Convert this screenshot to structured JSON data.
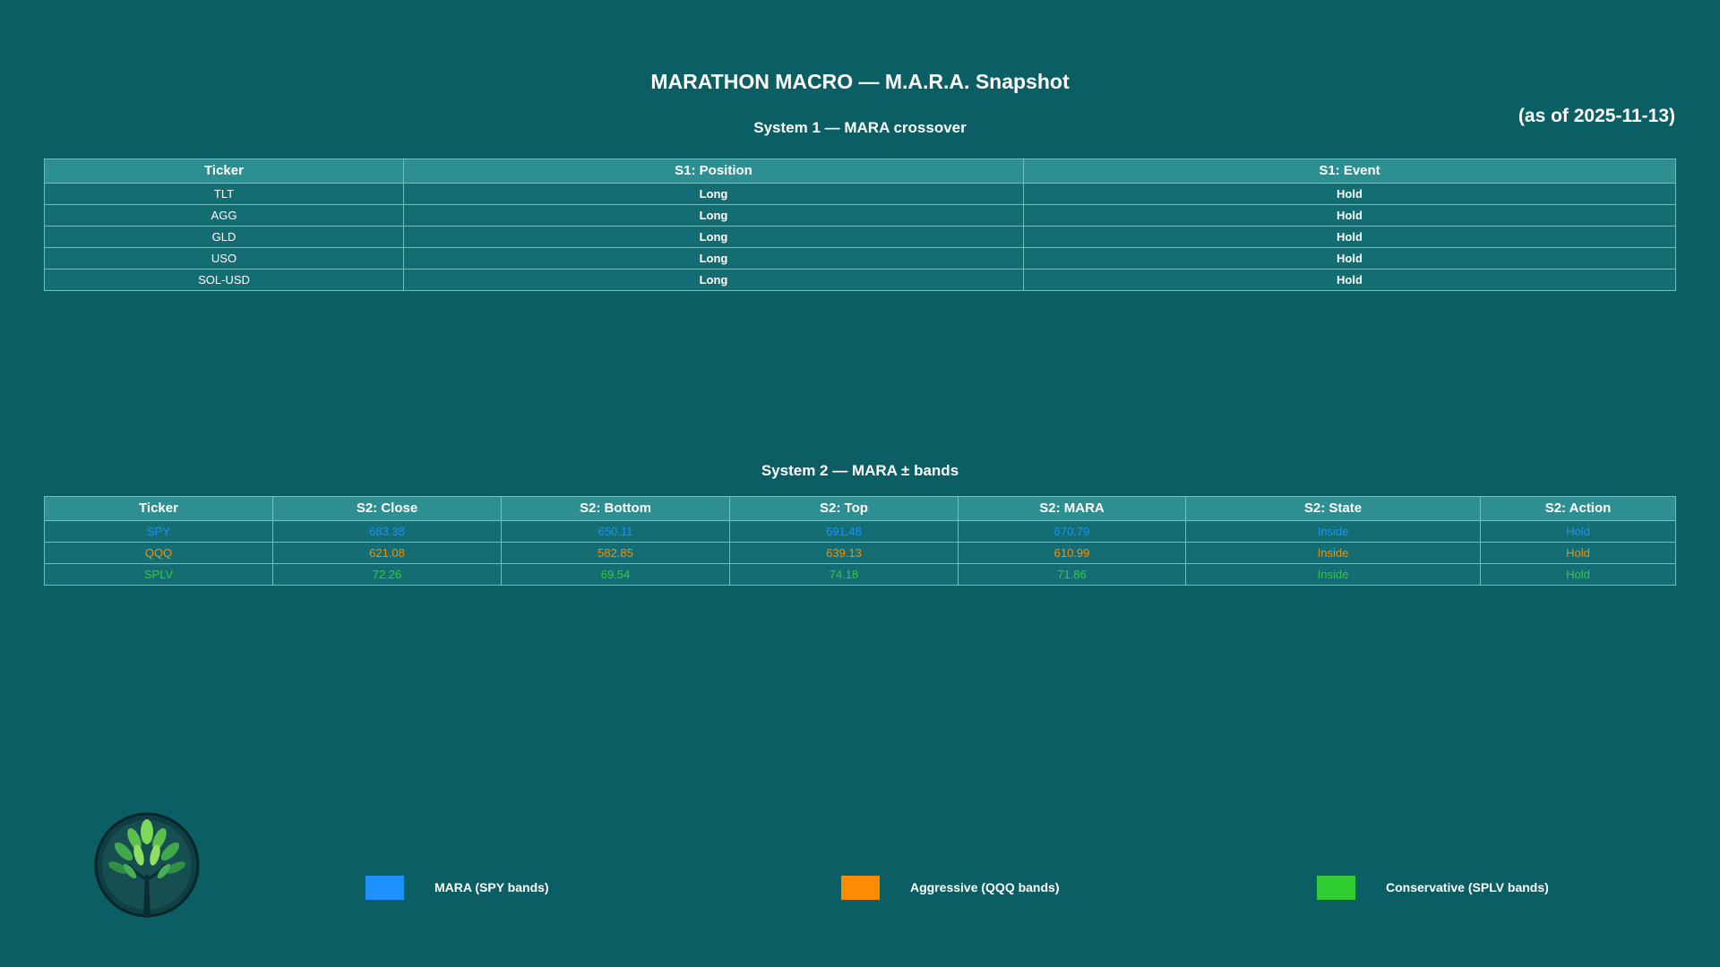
{
  "header": {
    "title": "MARATHON MACRO — M.A.R.A. Snapshot",
    "as_of": "(as of 2025-11-13)"
  },
  "system1": {
    "title": "System 1 — MARA crossover",
    "columns": [
      "Ticker",
      "S1: Position",
      "S1: Event"
    ],
    "rows": [
      [
        "TLT",
        "Long",
        "Hold"
      ],
      [
        "AGG",
        "Long",
        "Hold"
      ],
      [
        "GLD",
        "Long",
        "Hold"
      ],
      [
        "USO",
        "Long",
        "Hold"
      ],
      [
        "SOL-USD",
        "Long",
        "Hold"
      ]
    ]
  },
  "system2": {
    "title": "System 2 — MARA ± bands",
    "columns": [
      "Ticker",
      "S2: Close",
      "S2: Bottom",
      "S2: Top",
      "S2: MARA",
      "S2: State",
      "S2: Action"
    ],
    "rows": [
      {
        "color": "#1e90ff",
        "cells": [
          "SPY",
          "683.38",
          "650.11",
          "691.48",
          "670.79",
          "Inside",
          "Hold"
        ]
      },
      {
        "color": "#ff8c00",
        "cells": [
          "QQQ",
          "621.08",
          "582.85",
          "639.13",
          "610.99",
          "Inside",
          "Hold"
        ]
      },
      {
        "color": "#32cd32",
        "cells": [
          "SPLV",
          "72.26",
          "69.54",
          "74.18",
          "71.86",
          "Inside",
          "Hold"
        ]
      }
    ]
  },
  "legend": [
    {
      "label": "MARA (SPY bands)",
      "color": "#1e90ff"
    },
    {
      "label": "Aggressive (QQQ bands)",
      "color": "#ff8c00"
    },
    {
      "label": "Conservative (SPLV bands)",
      "color": "#32cd32"
    }
  ],
  "logo": {
    "icon": "tree-logo-icon"
  }
}
